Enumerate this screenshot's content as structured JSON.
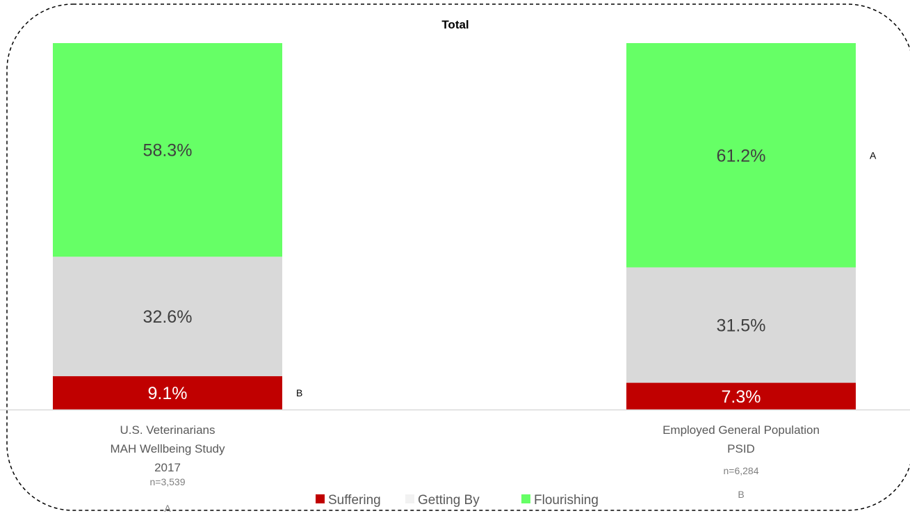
{
  "chart_data": {
    "type": "bar",
    "stacked": true,
    "title": "Total",
    "categories": [
      [
        "U.S. Veterinarians",
        "MAH Wellbeing Study",
        "2017"
      ],
      [
        "Employed General Population",
        "PSID"
      ]
    ],
    "sample_sizes": [
      "n=3,539",
      "n=6,284"
    ],
    "bottom_letters": [
      "A",
      "B"
    ],
    "series": [
      {
        "name": "Suffering",
        "values": [
          9.1,
          7.3
        ],
        "labels": [
          "9.1%",
          "7.3%"
        ],
        "color": "#C00000",
        "label_color": "#FFFFFF",
        "sig_letters": [
          "B",
          ""
        ]
      },
      {
        "name": "Getting By",
        "values": [
          32.6,
          31.5
        ],
        "labels": [
          "32.6%",
          "31.5%"
        ],
        "color": "#D9D9D9",
        "label_color": "#404040",
        "sig_letters": [
          "",
          ""
        ]
      },
      {
        "name": "Flourishing",
        "values": [
          58.3,
          61.2
        ],
        "labels": [
          "58.3%",
          "61.2%"
        ],
        "color": "#66FF66",
        "label_color": "#404040",
        "sig_letters": [
          "",
          "A"
        ]
      }
    ],
    "ylim": [
      0,
      100
    ],
    "legend_position": "bottom",
    "grid": false,
    "border_style": "dashed rounded"
  }
}
